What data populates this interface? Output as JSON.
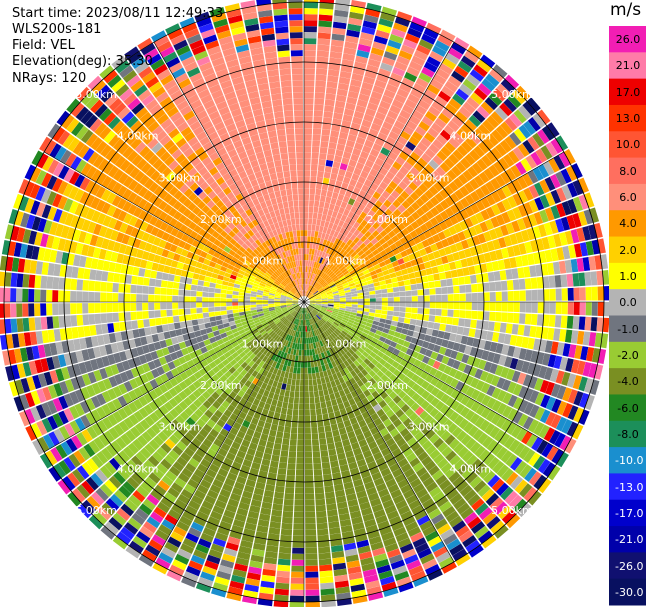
{
  "header": {
    "start_time": "Start time: 2023/08/11 12:49:33",
    "instrument": "WLS200s-181",
    "field": "Field: VEL",
    "elevation": "Elevation(deg): 35.30",
    "nrays": "NRays: 120"
  },
  "chart_data": {
    "type": "heatmap",
    "projection": "polar (PPI)",
    "field": "VEL",
    "units": "m/s",
    "nrays": 120,
    "elevation_deg": 35.3,
    "range_rings_km": [
      1.0,
      2.0,
      3.0,
      4.0,
      5.0
    ],
    "range_ring_labels": [
      "1.00km",
      "2.00km",
      "3.00km",
      "4.00km",
      "5.00km"
    ],
    "spokes_deg": [
      0,
      30,
      60,
      90,
      120,
      150,
      180,
      210,
      240,
      270,
      300,
      330
    ],
    "colorbar": {
      "label": "m/s",
      "ticks": [
        "26.0",
        "21.0",
        "17.0",
        "13.0",
        "10.0",
        "8.0",
        "6.0",
        "4.0",
        "2.0",
        "1.0",
        "0.0",
        "-1.0",
        "-2.0",
        "-4.0",
        "-6.0",
        "-8.0",
        "-10.0",
        "-13.0",
        "-17.0",
        "-21.0",
        "-26.0",
        "-30.0"
      ],
      "bins": [
        {
          "color": "#f21eb4"
        },
        {
          "color": "#ff7ba8"
        },
        {
          "color": "#ee0000"
        },
        {
          "color": "#ff3300"
        },
        {
          "color": "#ff5533"
        },
        {
          "color": "#ff6f5f"
        },
        {
          "color": "#ff8f7a"
        },
        {
          "color": "#ff9900"
        },
        {
          "color": "#ffd000"
        },
        {
          "color": "#ffff00"
        },
        {
          "color": "#b4b4b4"
        },
        {
          "color": "#70757f"
        },
        {
          "color": "#99cc33"
        },
        {
          "color": "#7a8f22"
        },
        {
          "color": "#228822"
        },
        {
          "color": "#1c8f5a"
        },
        {
          "color": "#1a8fcf"
        },
        {
          "color": "#2222ff"
        },
        {
          "color": "#0000cc"
        },
        {
          "color": "#0000aa"
        },
        {
          "color": "#101070"
        },
        {
          "color": "#081060"
        }
      ]
    },
    "velocity_pattern": {
      "range_limit_km": 5.0,
      "regions": [
        {
          "sector": "north",
          "value_ms": 4.0
        },
        {
          "sector": "north-inner",
          "value_ms": 2.0
        },
        {
          "sector": "east-west band",
          "value_ms": 0.0
        },
        {
          "sector": "south-inner",
          "value_ms": -2.0
        },
        {
          "sector": "south",
          "value_ms": -4.0
        },
        {
          "sector": "south-outer",
          "value_ms": -6.0
        }
      ],
      "noise_beyond_km": 4.6
    }
  }
}
